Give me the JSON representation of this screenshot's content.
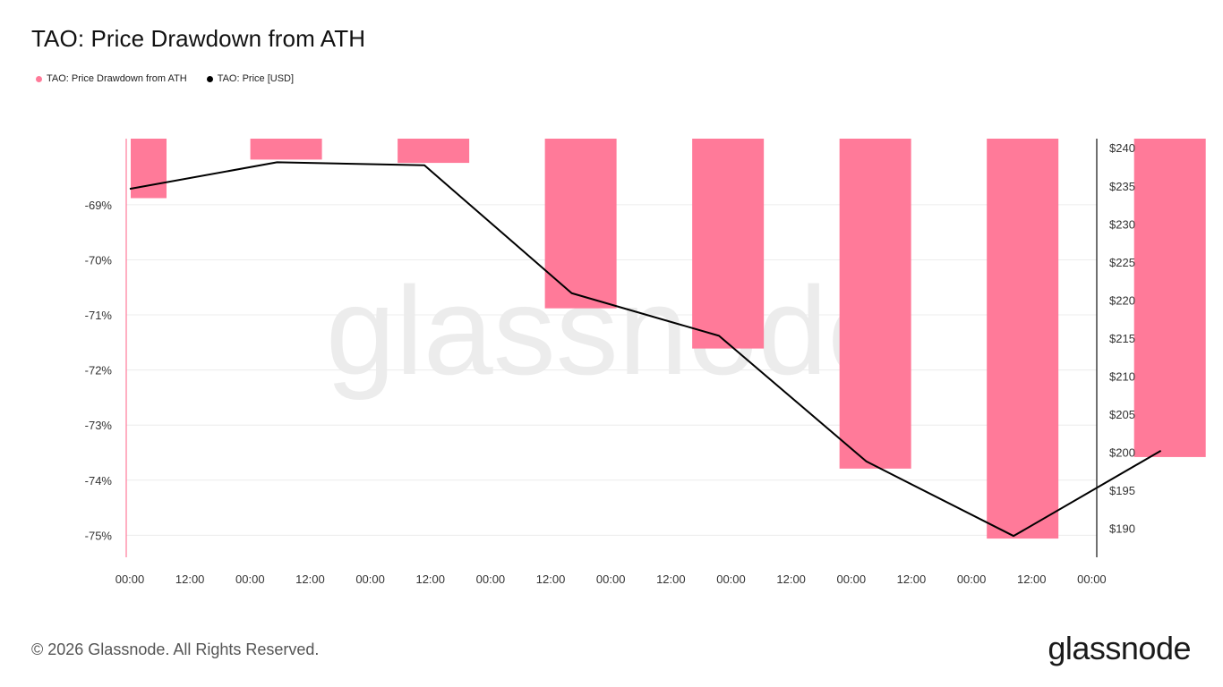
{
  "title": "TAO: Price Drawdown from ATH",
  "legend": [
    {
      "label": "TAO: Price Drawdown from ATH",
      "color": "#ff7a99"
    },
    {
      "label": "TAO: Price [USD]",
      "color": "#000000"
    }
  ],
  "watermark": "glassnode",
  "footer": {
    "copyright": "© 2026 Glassnode. All Rights Reserved.",
    "logo": "glassnode"
  },
  "chart_data": {
    "type": "bar",
    "title": "TAO: Price Drawdown from ATH",
    "x_tick_labels": [
      "00:00",
      "12:00",
      "00:00",
      "12:00",
      "00:00",
      "12:00",
      "00:00",
      "12:00",
      "00:00",
      "12:00",
      "00:00",
      "12:00",
      "00:00",
      "12:00",
      "00:00",
      "12:00",
      "00:00"
    ],
    "bar_positions": [
      0.15,
      2.6,
      5.05,
      7.5,
      9.95,
      12.4,
      14.85,
      17.3
    ],
    "y_left": {
      "ticks": [
        -69,
        -70,
        -71,
        -72,
        -73,
        -74,
        -75
      ],
      "tick_labels": [
        "-69%",
        "-70%",
        "-71%",
        "-72%",
        "-73%",
        "-74%",
        "-75%"
      ],
      "range": [
        -75.4,
        -67.8
      ]
    },
    "y_right": {
      "ticks": [
        240,
        235,
        230,
        225,
        220,
        215,
        210,
        205,
        200,
        195,
        190
      ],
      "tick_labels": [
        "$240",
        "$235",
        "$230",
        "$225",
        "$220",
        "$215",
        "$210",
        "$205",
        "$200",
        "$195",
        "$190"
      ],
      "range": [
        186.2,
        241.2
      ]
    },
    "series": [
      {
        "name": "TAO: Price Drawdown from ATH",
        "type": "bar",
        "axis": "left",
        "color": "#ff7a99",
        "values": [
          -68.88,
          -68.18,
          -68.24,
          -70.88,
          -71.61,
          -73.79,
          -75.06,
          -73.58
        ]
      },
      {
        "name": "TAO: Price [USD]",
        "type": "line",
        "axis": "right",
        "color": "#000000",
        "x": [
          0,
          2.45,
          4.9,
          7.35,
          9.8,
          12.25,
          14.7,
          17.15
        ],
        "values": [
          234.6,
          238.1,
          237.7,
          220.9,
          215.3,
          198.8,
          189.0,
          200.2
        ]
      }
    ],
    "grid": true,
    "legend_position": "top-left"
  }
}
